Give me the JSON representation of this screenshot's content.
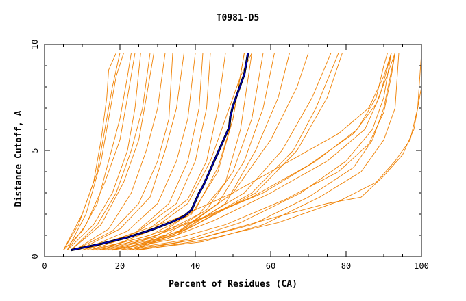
{
  "chart_data": {
    "type": "line",
    "title": "T0981-D5",
    "xlabel": "Percent of Residues (CA)",
    "ylabel": "Distance Cutoff, A",
    "xlim": [
      0,
      100
    ],
    "ylim": [
      0,
      10
    ],
    "xticks": [
      0,
      20,
      40,
      60,
      80,
      100
    ],
    "yticks": [
      0,
      5,
      10
    ],
    "grid": false,
    "legend": "none",
    "colors": {
      "models": "#f08000",
      "highlight": "#0000c0",
      "highlight_outline": "#000000"
    },
    "models": [
      [
        [
          5,
          0.3
        ],
        [
          9,
          1.5
        ],
        [
          13,
          3.5
        ],
        [
          15,
          5.5
        ],
        [
          16.5,
          7.5
        ],
        [
          17,
          8.8
        ],
        [
          19,
          9.6
        ]
      ],
      [
        [
          5,
          0.3
        ],
        [
          10,
          2
        ],
        [
          14,
          4
        ],
        [
          16,
          6
        ],
        [
          18,
          8
        ],
        [
          20,
          9.6
        ]
      ],
      [
        [
          6,
          0.3
        ],
        [
          11,
          2
        ],
        [
          15,
          4.5
        ],
        [
          17,
          6.5
        ],
        [
          19,
          8.5
        ],
        [
          21,
          9.6
        ]
      ],
      [
        [
          5,
          0.3
        ],
        [
          10,
          1.2
        ],
        [
          14,
          2.5
        ],
        [
          17,
          4.5
        ],
        [
          20,
          6.5
        ],
        [
          22,
          8.5
        ],
        [
          23,
          9.6
        ]
      ],
      [
        [
          6,
          0.3
        ],
        [
          11,
          1.5
        ],
        [
          16,
          3.5
        ],
        [
          20,
          5.5
        ],
        [
          22,
          7.5
        ],
        [
          24,
          9.6
        ]
      ],
      [
        [
          6,
          0.3
        ],
        [
          13,
          1.5
        ],
        [
          18,
          3
        ],
        [
          22,
          5
        ],
        [
          24,
          7
        ],
        [
          25.5,
          9.6
        ]
      ],
      [
        [
          7,
          0.3
        ],
        [
          14,
          1.5
        ],
        [
          19,
          3
        ],
        [
          23,
          5
        ],
        [
          26,
          7
        ],
        [
          28,
          9.6
        ]
      ],
      [
        [
          7,
          0.3
        ],
        [
          15,
          1.5
        ],
        [
          21,
          3.5
        ],
        [
          25,
          5.5
        ],
        [
          27,
          7.5
        ],
        [
          29,
          9.6
        ]
      ],
      [
        [
          8,
          0.3
        ],
        [
          17,
          1.3
        ],
        [
          23,
          3
        ],
        [
          27,
          5
        ],
        [
          30,
          7
        ],
        [
          32,
          9.6
        ]
      ],
      [
        [
          8,
          0.3
        ],
        [
          18,
          1.2
        ],
        [
          25,
          2.5
        ],
        [
          30,
          4.5
        ],
        [
          33,
          6.5
        ],
        [
          34,
          9.6
        ]
      ],
      [
        [
          9,
          0.3
        ],
        [
          20,
          1.3
        ],
        [
          28,
          2.8
        ],
        [
          32,
          5
        ],
        [
          35,
          7
        ],
        [
          37,
          9.6
        ]
      ],
      [
        [
          10,
          0.3
        ],
        [
          22,
          1.2
        ],
        [
          30,
          2.5
        ],
        [
          35,
          4.5
        ],
        [
          38,
          6.5
        ],
        [
          40,
          9.6
        ]
      ],
      [
        [
          10,
          0.3
        ],
        [
          24,
          1.1
        ],
        [
          33,
          2.5
        ],
        [
          38,
          4.5
        ],
        [
          41,
          7
        ],
        [
          42,
          9.6
        ]
      ],
      [
        [
          11,
          0.3
        ],
        [
          25,
          1.2
        ],
        [
          35,
          2.5
        ],
        [
          40,
          4.5
        ],
        [
          43,
          7
        ],
        [
          44,
          9.6
        ]
      ],
      [
        [
          12,
          0.3
        ],
        [
          27,
          1.2
        ],
        [
          38,
          2.7
        ],
        [
          43,
          4.5
        ],
        [
          46,
          7
        ],
        [
          48,
          9.6
        ]
      ],
      [
        [
          13,
          0.3
        ],
        [
          28,
          1
        ],
        [
          39,
          2
        ],
        [
          46,
          4
        ],
        [
          50,
          6.5
        ],
        [
          53,
          9.6
        ]
      ],
      [
        [
          14,
          0.3
        ],
        [
          30,
          1
        ],
        [
          41,
          2
        ],
        [
          48,
          3.5
        ],
        [
          52,
          6
        ],
        [
          55,
          9.6
        ]
      ],
      [
        [
          15,
          0.3
        ],
        [
          32,
          1
        ],
        [
          43,
          2.2
        ],
        [
          50,
          4
        ],
        [
          55,
          6.5
        ],
        [
          58,
          9.6
        ]
      ],
      [
        [
          16,
          0.3
        ],
        [
          34,
          1
        ],
        [
          46,
          2.5
        ],
        [
          53,
          4.5
        ],
        [
          58,
          7
        ],
        [
          61,
          9.6
        ]
      ],
      [
        [
          18,
          0.3
        ],
        [
          35,
          1
        ],
        [
          48,
          2.5
        ],
        [
          56,
          5
        ],
        [
          62,
          7.5
        ],
        [
          65,
          9.6
        ]
      ],
      [
        [
          20,
          0.3
        ],
        [
          36,
          1.2
        ],
        [
          50,
          3
        ],
        [
          60,
          5.5
        ],
        [
          67,
          8
        ],
        [
          70,
          9.6
        ]
      ],
      [
        [
          22,
          0.3
        ],
        [
          37,
          1.3
        ],
        [
          53,
          3
        ],
        [
          63,
          5
        ],
        [
          71,
          7.5
        ],
        [
          76,
          9.6
        ]
      ],
      [
        [
          23,
          0.3
        ],
        [
          38,
          1.3
        ],
        [
          56,
          3
        ],
        [
          67,
          5
        ],
        [
          75,
          7.5
        ],
        [
          79,
          9.6
        ]
      ],
      [
        [
          24,
          0.3
        ],
        [
          39,
          1.4
        ],
        [
          55,
          3
        ],
        [
          66,
          5
        ],
        [
          72,
          7
        ],
        [
          78,
          9.6
        ]
      ],
      [
        [
          10,
          0.3
        ],
        [
          22,
          1
        ],
        [
          35,
          1.8
        ],
        [
          50,
          3
        ],
        [
          65,
          4.5
        ],
        [
          78,
          5.8
        ],
        [
          86,
          7
        ],
        [
          90,
          8.5
        ],
        [
          92,
          9.6
        ]
      ],
      [
        [
          12,
          0.3
        ],
        [
          26,
          0.9
        ],
        [
          40,
          1.7
        ],
        [
          55,
          2.8
        ],
        [
          70,
          4.3
        ],
        [
          82,
          5.8
        ],
        [
          88,
          7.2
        ],
        [
          91,
          8.6
        ],
        [
          93,
          9.6
        ]
      ],
      [
        [
          14,
          0.3
        ],
        [
          28,
          0.9
        ],
        [
          42,
          1.8
        ],
        [
          58,
          3
        ],
        [
          72,
          4.5
        ],
        [
          83,
          6
        ],
        [
          88,
          7.5
        ],
        [
          90,
          9
        ],
        [
          91,
          9.6
        ]
      ],
      [
        [
          17,
          0.3
        ],
        [
          32,
          0.8
        ],
        [
          45,
          1.7
        ],
        [
          60,
          3
        ],
        [
          75,
          4.5
        ],
        [
          85,
          6
        ],
        [
          89,
          7.6
        ],
        [
          92,
          9.6
        ]
      ],
      [
        [
          18,
          0.3
        ],
        [
          34,
          0.8
        ],
        [
          48,
          1.5
        ],
        [
          64,
          2.7
        ],
        [
          78,
          4
        ],
        [
          86,
          5.3
        ],
        [
          90,
          6.8
        ],
        [
          92,
          8.5
        ],
        [
          93,
          9.6
        ]
      ],
      [
        [
          20,
          0.3
        ],
        [
          38,
          0.8
        ],
        [
          52,
          1.6
        ],
        [
          68,
          3
        ],
        [
          80,
          4.5
        ],
        [
          87,
          6
        ],
        [
          90,
          7.5
        ],
        [
          92,
          9.6
        ]
      ],
      [
        [
          22,
          0.3
        ],
        [
          40,
          0.8
        ],
        [
          55,
          1.5
        ],
        [
          70,
          2.8
        ],
        [
          82,
          4.2
        ],
        [
          87,
          5.5
        ],
        [
          90,
          7
        ],
        [
          93,
          9.6
        ]
      ],
      [
        [
          24,
          0.3
        ],
        [
          42,
          0.7
        ],
        [
          58,
          1.5
        ],
        [
          73,
          2.8
        ],
        [
          84,
          4
        ],
        [
          90,
          5.5
        ],
        [
          93,
          7
        ],
        [
          94,
          9.6
        ]
      ],
      [
        [
          24,
          0.3
        ],
        [
          40,
          0.8
        ],
        [
          58,
          1.7
        ],
        [
          75,
          2.5
        ],
        [
          84,
          2.8
        ],
        [
          90,
          3.8
        ],
        [
          95,
          4.8
        ],
        [
          98,
          6
        ],
        [
          100,
          8
        ],
        [
          100,
          9.6
        ]
      ],
      [
        [
          25,
          0.3
        ],
        [
          43,
          0.8
        ],
        [
          62,
          1.6
        ],
        [
          78,
          2.6
        ],
        [
          88,
          3.5
        ],
        [
          93,
          4.5
        ],
        [
          97,
          5.5
        ],
        [
          99,
          7
        ],
        [
          100,
          9.6
        ]
      ],
      [
        [
          15,
          0.3
        ],
        [
          28,
          1.2
        ],
        [
          38,
          2.5
        ],
        [
          44,
          4.5
        ],
        [
          48,
          6.5
        ],
        [
          52,
          8.5
        ],
        [
          55,
          9.6
        ]
      ],
      [
        [
          18,
          0.3
        ],
        [
          30,
          1
        ],
        [
          40,
          2.2
        ],
        [
          46,
          4.2
        ],
        [
          50,
          6.5
        ],
        [
          53,
          9.6
        ]
      ]
    ],
    "highlight": [
      [
        7,
        0.3
      ],
      [
        15,
        0.6
      ],
      [
        22,
        0.9
      ],
      [
        29,
        1.3
      ],
      [
        34,
        1.65
      ],
      [
        37,
        1.9
      ],
      [
        39,
        2.2
      ],
      [
        40,
        2.6
      ],
      [
        41,
        3
      ],
      [
        42,
        3.3
      ],
      [
        43,
        3.7
      ],
      [
        44,
        4.1
      ],
      [
        45,
        4.5
      ],
      [
        46,
        4.9
      ],
      [
        47,
        5.3
      ],
      [
        48,
        5.7
      ],
      [
        49,
        6.1
      ],
      [
        49.3,
        6.6
      ],
      [
        50,
        7.1
      ],
      [
        51,
        7.6
      ],
      [
        52,
        8.1
      ],
      [
        53,
        8.6
      ],
      [
        53.5,
        9.1
      ],
      [
        54,
        9.6
      ]
    ]
  }
}
